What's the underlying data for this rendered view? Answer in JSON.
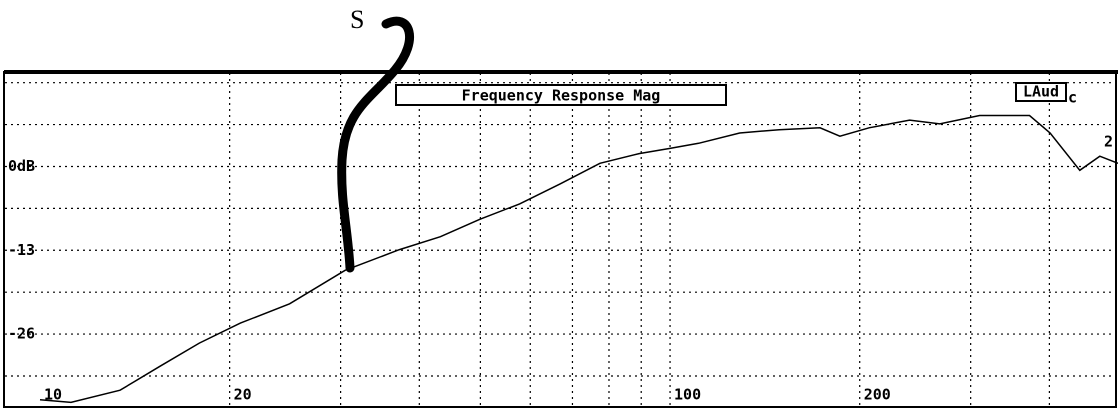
{
  "chart_data": {
    "type": "line",
    "title": "Frequency Response Mag",
    "channel_label": "LAud",
    "channel_suffix": "c",
    "marker_label": "2",
    "annotation": "S",
    "xscale": "log",
    "xlim": [
      8.8,
      514
    ],
    "ylim": [
      -37,
      14.5
    ],
    "xticks": [
      10,
      20,
      100,
      200
    ],
    "xgrid": [
      20,
      30,
      40,
      50,
      60,
      70,
      80,
      90,
      100,
      200,
      300,
      400
    ],
    "yticks": [
      {
        "value": 0,
        "label": "0dB"
      },
      -13,
      -26
    ],
    "ygrid": [
      13,
      6.5,
      0,
      -6.5,
      -13,
      -19.5,
      -26,
      -32.5
    ],
    "grid": true,
    "series": [
      {
        "color": "#000000",
        "x": [
          10,
          11.2,
          13.4,
          15.5,
          17.9,
          20.8,
          24.9,
          30.5,
          37.2,
          43.2,
          49.9,
          57.7,
          66.9,
          77.4,
          89.3,
          100,
          111,
          129,
          149,
          173,
          186,
          207,
          240,
          268,
          310,
          372,
          401,
          447,
          481,
          514
        ],
        "values": [
          -36.2,
          -36.6,
          -34.7,
          -31,
          -27.4,
          -24.3,
          -21.3,
          -16.1,
          -12.9,
          -10.9,
          -8.2,
          -5.8,
          -2.7,
          0.5,
          2,
          2.8,
          3.6,
          5.2,
          5.7,
          6,
          4.7,
          6,
          7.2,
          6.6,
          7.9,
          7.9,
          5.2,
          -0.6,
          1.6,
          0.5
        ]
      }
    ]
  }
}
